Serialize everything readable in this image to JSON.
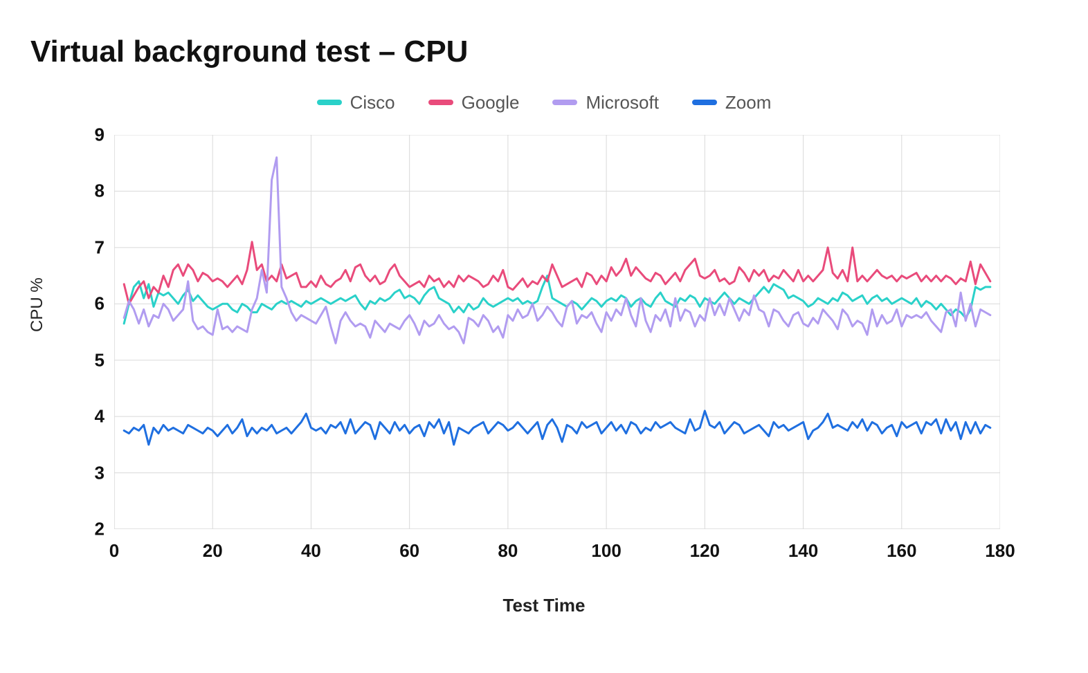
{
  "title": "Virtual background test – CPU",
  "xlabel": "Test Time",
  "ylabel": "CPU %",
  "chart": {
    "type": "line",
    "background_color": "#ffffff",
    "grid_color": "#d9d9d9",
    "axis_color": "#555555",
    "line_width": 3,
    "xlim": [
      0,
      180
    ],
    "ylim": [
      2,
      9
    ],
    "xticks": [
      0,
      20,
      40,
      60,
      80,
      100,
      120,
      140,
      160,
      180
    ],
    "yticks": [
      2,
      3,
      4,
      5,
      6,
      7,
      8,
      9
    ],
    "x_values": [
      2,
      3,
      4,
      5,
      6,
      7,
      8,
      9,
      10,
      11,
      12,
      13,
      14,
      15,
      16,
      17,
      18,
      19,
      20,
      21,
      22,
      23,
      24,
      25,
      26,
      27,
      28,
      29,
      30,
      31,
      32,
      33,
      34,
      35,
      36,
      37,
      38,
      39,
      40,
      41,
      42,
      43,
      44,
      45,
      46,
      47,
      48,
      49,
      50,
      51,
      52,
      53,
      54,
      55,
      56,
      57,
      58,
      59,
      60,
      61,
      62,
      63,
      64,
      65,
      66,
      67,
      68,
      69,
      70,
      71,
      72,
      73,
      74,
      75,
      76,
      77,
      78,
      79,
      80,
      81,
      82,
      83,
      84,
      85,
      86,
      87,
      88,
      89,
      90,
      91,
      92,
      93,
      94,
      95,
      96,
      97,
      98,
      99,
      100,
      101,
      102,
      103,
      104,
      105,
      106,
      107,
      108,
      109,
      110,
      111,
      112,
      113,
      114,
      115,
      116,
      117,
      118,
      119,
      120,
      121,
      122,
      123,
      124,
      125,
      126,
      127,
      128,
      129,
      130,
      131,
      132,
      133,
      134,
      135,
      136,
      137,
      138,
      139,
      140,
      141,
      142,
      143,
      144,
      145,
      146,
      147,
      148,
      149,
      150,
      151,
      152,
      153,
      154,
      155,
      156,
      157,
      158,
      159,
      160,
      161,
      162,
      163,
      164,
      165,
      166,
      167,
      168,
      169,
      170,
      171,
      172,
      173,
      174,
      175,
      176,
      177,
      178
    ],
    "series": [
      {
        "name": "Cisco",
        "color": "#2ad1c9",
        "values": [
          5.65,
          6.0,
          6.3,
          6.4,
          6.1,
          6.35,
          5.95,
          6.2,
          6.15,
          6.2,
          6.1,
          6.0,
          6.15,
          6.25,
          6.05,
          6.15,
          6.05,
          5.95,
          5.9,
          5.95,
          6.0,
          6.0,
          5.9,
          5.85,
          6.0,
          5.95,
          5.85,
          5.85,
          6.0,
          5.95,
          5.9,
          6.0,
          6.05,
          6.0,
          6.05,
          6.0,
          5.95,
          6.05,
          6.0,
          6.05,
          6.1,
          6.05,
          6.0,
          6.05,
          6.1,
          6.05,
          6.1,
          6.15,
          6.0,
          5.9,
          6.05,
          6.0,
          6.1,
          6.05,
          6.1,
          6.2,
          6.25,
          6.1,
          6.15,
          6.1,
          6.0,
          6.15,
          6.25,
          6.3,
          6.1,
          6.05,
          6.0,
          5.85,
          5.95,
          5.85,
          6.0,
          5.9,
          5.95,
          6.1,
          6.0,
          5.95,
          6.0,
          6.05,
          6.1,
          6.05,
          6.1,
          6.0,
          6.05,
          6.0,
          6.05,
          6.3,
          6.5,
          6.1,
          6.05,
          6.0,
          5.95,
          6.05,
          6.0,
          5.9,
          6.0,
          6.1,
          6.05,
          5.95,
          6.05,
          6.1,
          6.05,
          6.15,
          6.1,
          5.95,
          6.05,
          6.1,
          6.0,
          5.95,
          6.1,
          6.2,
          6.05,
          6.0,
          5.95,
          6.1,
          6.05,
          6.15,
          6.1,
          5.95,
          6.1,
          6.05,
          6.0,
          6.1,
          6.2,
          6.1,
          6.0,
          6.1,
          6.05,
          6.0,
          6.1,
          6.2,
          6.3,
          6.2,
          6.35,
          6.3,
          6.25,
          6.1,
          6.15,
          6.1,
          6.05,
          5.95,
          6.0,
          6.1,
          6.05,
          6.0,
          6.1,
          6.05,
          6.2,
          6.15,
          6.05,
          6.1,
          6.15,
          6.0,
          6.1,
          6.15,
          6.05,
          6.1,
          6.0,
          6.05,
          6.1,
          6.05,
          6.0,
          6.1,
          5.95,
          6.05,
          6.0,
          5.9,
          6.0,
          5.9,
          5.8,
          5.9,
          5.85,
          5.75,
          5.9,
          6.3,
          6.25,
          6.3,
          6.3
        ]
      },
      {
        "name": "Google",
        "color": "#e94b7b",
        "values": [
          6.35,
          6.0,
          6.15,
          6.3,
          6.4,
          6.1,
          6.3,
          6.2,
          6.5,
          6.3,
          6.6,
          6.7,
          6.5,
          6.7,
          6.6,
          6.4,
          6.55,
          6.5,
          6.4,
          6.45,
          6.4,
          6.3,
          6.4,
          6.5,
          6.35,
          6.6,
          7.1,
          6.6,
          6.7,
          6.4,
          6.5,
          6.4,
          6.7,
          6.45,
          6.5,
          6.55,
          6.3,
          6.3,
          6.4,
          6.3,
          6.5,
          6.35,
          6.3,
          6.4,
          6.45,
          6.6,
          6.4,
          6.65,
          6.7,
          6.5,
          6.4,
          6.5,
          6.35,
          6.4,
          6.6,
          6.7,
          6.5,
          6.4,
          6.3,
          6.35,
          6.4,
          6.3,
          6.5,
          6.4,
          6.45,
          6.3,
          6.4,
          6.3,
          6.5,
          6.4,
          6.5,
          6.45,
          6.4,
          6.3,
          6.35,
          6.5,
          6.4,
          6.6,
          6.3,
          6.25,
          6.35,
          6.45,
          6.3,
          6.4,
          6.35,
          6.5,
          6.4,
          6.7,
          6.5,
          6.3,
          6.35,
          6.4,
          6.45,
          6.3,
          6.55,
          6.5,
          6.35,
          6.5,
          6.4,
          6.65,
          6.5,
          6.6,
          6.8,
          6.5,
          6.65,
          6.55,
          6.45,
          6.4,
          6.55,
          6.5,
          6.35,
          6.45,
          6.55,
          6.4,
          6.6,
          6.7,
          6.8,
          6.5,
          6.45,
          6.5,
          6.6,
          6.4,
          6.45,
          6.35,
          6.4,
          6.65,
          6.55,
          6.4,
          6.6,
          6.5,
          6.6,
          6.4,
          6.5,
          6.45,
          6.6,
          6.5,
          6.4,
          6.6,
          6.4,
          6.5,
          6.4,
          6.5,
          6.6,
          7.0,
          6.55,
          6.45,
          6.6,
          6.4,
          7.0,
          6.4,
          6.5,
          6.4,
          6.5,
          6.6,
          6.5,
          6.45,
          6.5,
          6.4,
          6.5,
          6.45,
          6.5,
          6.55,
          6.4,
          6.5,
          6.4,
          6.5,
          6.4,
          6.5,
          6.45,
          6.35,
          6.45,
          6.4,
          6.75,
          6.35,
          6.7,
          6.55,
          6.4
        ]
      },
      {
        "name": "Microsoft",
        "color": "#b19cf0",
        "values": [
          5.75,
          6.05,
          5.9,
          5.65,
          5.9,
          5.6,
          5.8,
          5.75,
          6.0,
          5.9,
          5.7,
          5.8,
          5.9,
          6.4,
          5.7,
          5.55,
          5.6,
          5.5,
          5.45,
          5.9,
          5.55,
          5.6,
          5.5,
          5.6,
          5.55,
          5.5,
          5.9,
          6.1,
          6.6,
          6.2,
          8.2,
          8.6,
          6.3,
          6.1,
          5.85,
          5.7,
          5.8,
          5.75,
          5.7,
          5.65,
          5.8,
          5.95,
          5.6,
          5.3,
          5.7,
          5.85,
          5.7,
          5.6,
          5.65,
          5.6,
          5.4,
          5.7,
          5.6,
          5.5,
          5.65,
          5.6,
          5.55,
          5.7,
          5.8,
          5.65,
          5.45,
          5.7,
          5.6,
          5.65,
          5.8,
          5.65,
          5.55,
          5.6,
          5.5,
          5.3,
          5.75,
          5.7,
          5.6,
          5.8,
          5.7,
          5.5,
          5.6,
          5.4,
          5.8,
          5.7,
          5.9,
          5.75,
          5.8,
          6.0,
          5.7,
          5.8,
          5.95,
          5.85,
          5.7,
          5.6,
          5.95,
          6.05,
          5.65,
          5.8,
          5.75,
          5.85,
          5.65,
          5.5,
          5.85,
          5.7,
          5.9,
          5.8,
          6.1,
          5.8,
          5.6,
          6.1,
          5.7,
          5.5,
          5.8,
          5.7,
          5.9,
          5.6,
          6.1,
          5.7,
          5.9,
          5.85,
          5.6,
          5.8,
          5.7,
          6.1,
          5.8,
          6.0,
          5.8,
          6.1,
          5.9,
          5.7,
          5.9,
          5.8,
          6.15,
          5.9,
          5.85,
          5.6,
          5.9,
          5.85,
          5.7,
          5.6,
          5.8,
          5.85,
          5.65,
          5.6,
          5.75,
          5.65,
          5.9,
          5.8,
          5.7,
          5.55,
          5.9,
          5.8,
          5.6,
          5.7,
          5.65,
          5.45,
          5.9,
          5.6,
          5.8,
          5.65,
          5.7,
          5.9,
          5.6,
          5.8,
          5.75,
          5.8,
          5.75,
          5.85,
          5.7,
          5.6,
          5.5,
          5.85,
          5.9,
          5.6,
          6.2,
          5.7,
          6.0,
          5.6,
          5.9,
          5.85,
          5.8
        ]
      },
      {
        "name": "Zoom",
        "color": "#1f6fe0",
        "values": [
          3.75,
          3.7,
          3.8,
          3.75,
          3.85,
          3.5,
          3.8,
          3.7,
          3.85,
          3.75,
          3.8,
          3.75,
          3.7,
          3.85,
          3.8,
          3.75,
          3.7,
          3.8,
          3.75,
          3.65,
          3.75,
          3.85,
          3.7,
          3.8,
          3.95,
          3.65,
          3.8,
          3.7,
          3.8,
          3.75,
          3.85,
          3.7,
          3.75,
          3.8,
          3.7,
          3.8,
          3.9,
          4.05,
          3.8,
          3.75,
          3.8,
          3.7,
          3.85,
          3.8,
          3.9,
          3.7,
          3.95,
          3.7,
          3.8,
          3.9,
          3.85,
          3.6,
          3.9,
          3.8,
          3.7,
          3.9,
          3.75,
          3.85,
          3.7,
          3.8,
          3.85,
          3.65,
          3.9,
          3.8,
          3.95,
          3.7,
          3.9,
          3.5,
          3.8,
          3.75,
          3.7,
          3.8,
          3.85,
          3.9,
          3.7,
          3.8,
          3.9,
          3.85,
          3.75,
          3.8,
          3.9,
          3.8,
          3.7,
          3.8,
          3.9,
          3.6,
          3.85,
          3.95,
          3.8,
          3.55,
          3.85,
          3.8,
          3.7,
          3.9,
          3.8,
          3.85,
          3.9,
          3.7,
          3.8,
          3.9,
          3.75,
          3.85,
          3.7,
          3.9,
          3.85,
          3.7,
          3.8,
          3.75,
          3.9,
          3.8,
          3.85,
          3.9,
          3.8,
          3.75,
          3.7,
          3.95,
          3.75,
          3.8,
          4.1,
          3.85,
          3.8,
          3.9,
          3.7,
          3.8,
          3.9,
          3.85,
          3.7,
          3.75,
          3.8,
          3.85,
          3.75,
          3.65,
          3.9,
          3.8,
          3.85,
          3.75,
          3.8,
          3.85,
          3.9,
          3.6,
          3.75,
          3.8,
          3.9,
          4.05,
          3.8,
          3.85,
          3.8,
          3.75,
          3.9,
          3.8,
          3.95,
          3.75,
          3.9,
          3.85,
          3.7,
          3.8,
          3.85,
          3.65,
          3.9,
          3.8,
          3.85,
          3.9,
          3.7,
          3.9,
          3.85,
          3.95,
          3.7,
          3.95,
          3.75,
          3.9,
          3.6,
          3.9,
          3.7,
          3.9,
          3.7,
          3.85,
          3.8
        ]
      }
    ]
  }
}
